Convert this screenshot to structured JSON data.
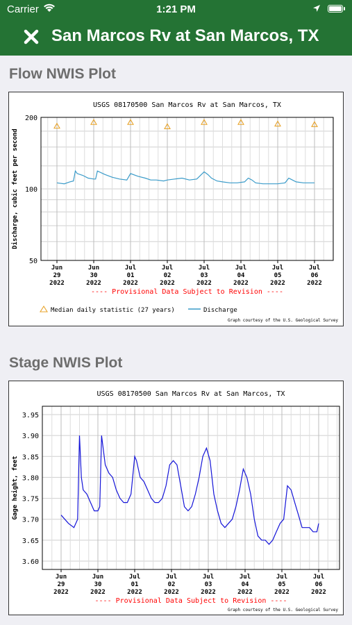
{
  "status_bar": {
    "carrier": "Carrier",
    "time": "1:21 PM"
  },
  "nav": {
    "title": "San Marcos Rv at San Marcos, TX"
  },
  "flow_section": {
    "title": "Flow NWIS Plot"
  },
  "stage_section": {
    "title": "Stage NWIS Plot"
  },
  "colors": {
    "header": "#247334",
    "discharge": "#3a9bc9",
    "stage": "#1414d8",
    "median": "#e8a32a",
    "provisional": "#ff0000"
  },
  "chart_data": [
    {
      "type": "line",
      "title": "USGS 08170500 San Marcos Rv at San Marcos, TX",
      "ylabel": "Discharge, cubic feet per second",
      "xlabel": "",
      "y_scale": "log",
      "ylim": [
        50,
        200
      ],
      "ytick_labels": [
        "200",
        "100",
        "50"
      ],
      "xtick_labels": [
        [
          "Jun",
          "29",
          "2022"
        ],
        [
          "Jun",
          "30",
          "2022"
        ],
        [
          "Jul",
          "01",
          "2022"
        ],
        [
          "Jul",
          "02",
          "2022"
        ],
        [
          "Jul",
          "03",
          "2022"
        ],
        [
          "Jul",
          "04",
          "2022"
        ],
        [
          "Jul",
          "05",
          "2022"
        ],
        [
          "Jul",
          "06",
          "2022"
        ]
      ],
      "provisional_note": "---- Provisional Data Subject to Revision ----",
      "legend": [
        "Median daily statistic (27 years)",
        "Discharge"
      ],
      "courtesy": "Graph courtesy of the U.S. Geological Survey",
      "series": [
        {
          "name": "Median daily statistic (27 years)",
          "x": [
            0,
            1,
            2,
            3,
            4,
            5,
            6,
            7
          ],
          "values": [
            190,
            197,
            197,
            189,
            197,
            197,
            194,
            193
          ]
        },
        {
          "name": "Discharge",
          "x": [
            0,
            0.2,
            0.35,
            0.45,
            0.5,
            0.55,
            0.7,
            0.85,
            1,
            1.05,
            1.1,
            1.3,
            1.5,
            1.7,
            1.9,
            2,
            2.2,
            2.4,
            2.55,
            2.7,
            2.9,
            3,
            3.2,
            3.4,
            3.6,
            3.8,
            4,
            4.1,
            4.2,
            4.35,
            4.5,
            4.7,
            4.9,
            5.1,
            5.2,
            5.3,
            5.4,
            5.6,
            5.8,
            6,
            6.2,
            6.3,
            6.35,
            6.5,
            6.7,
            6.9,
            7
          ],
          "values": [
            106,
            105,
            107,
            108,
            119,
            116,
            114,
            111,
            110,
            110,
            119,
            115,
            112,
            110,
            109,
            116,
            113,
            111,
            109,
            109,
            108,
            109,
            110,
            111,
            109,
            110,
            118,
            115,
            111,
            108,
            107,
            106,
            106,
            107,
            111,
            109,
            106,
            105,
            105,
            105,
            106,
            111,
            110,
            107,
            106,
            106,
            106
          ]
        }
      ]
    },
    {
      "type": "line",
      "title": "USGS 08170500 San Marcos Rv at San Marcos, TX",
      "ylabel": "Gage height, feet",
      "xlabel": "",
      "ylim": [
        3.58,
        3.97
      ],
      "ytick_labels": [
        "3.95",
        "3.90",
        "3.85",
        "3.80",
        "3.75",
        "3.70",
        "3.65",
        "3.60"
      ],
      "xtick_labels": [
        [
          "Jun",
          "29",
          "2022"
        ],
        [
          "Jun",
          "30",
          "2022"
        ],
        [
          "Jul",
          "01",
          "2022"
        ],
        [
          "Jul",
          "02",
          "2022"
        ],
        [
          "Jul",
          "03",
          "2022"
        ],
        [
          "Jul",
          "04",
          "2022"
        ],
        [
          "Jul",
          "05",
          "2022"
        ],
        [
          "Jul",
          "06",
          "2022"
        ]
      ],
      "provisional_note": "---- Provisional Data Subject to Revision ----",
      "courtesy": "Graph courtesy of the U.S. Geological Survey",
      "series": [
        {
          "name": "Gage height",
          "x": [
            0,
            0.1,
            0.2,
            0.35,
            0.45,
            0.5,
            0.55,
            0.6,
            0.7,
            0.8,
            0.9,
            1,
            1.05,
            1.1,
            1.2,
            1.3,
            1.4,
            1.5,
            1.6,
            1.7,
            1.8,
            1.9,
            2,
            2.05,
            2.15,
            2.25,
            2.35,
            2.45,
            2.55,
            2.65,
            2.75,
            2.85,
            2.95,
            3.05,
            3.15,
            3.25,
            3.35,
            3.45,
            3.55,
            3.65,
            3.75,
            3.85,
            3.95,
            4.05,
            4.15,
            4.25,
            4.35,
            4.45,
            4.55,
            4.65,
            4.75,
            4.85,
            4.95,
            5.05,
            5.15,
            5.25,
            5.35,
            5.45,
            5.55,
            5.65,
            5.75,
            5.85,
            5.95,
            6.05,
            6.15,
            6.25,
            6.35,
            6.45,
            6.55,
            6.65,
            6.75,
            6.85,
            6.95,
            7
          ],
          "values": [
            3.71,
            3.7,
            3.69,
            3.68,
            3.7,
            3.9,
            3.8,
            3.77,
            3.76,
            3.74,
            3.72,
            3.72,
            3.73,
            3.9,
            3.83,
            3.81,
            3.8,
            3.77,
            3.75,
            3.74,
            3.74,
            3.76,
            3.85,
            3.84,
            3.8,
            3.79,
            3.77,
            3.75,
            3.74,
            3.74,
            3.75,
            3.78,
            3.83,
            3.84,
            3.83,
            3.78,
            3.73,
            3.72,
            3.73,
            3.76,
            3.8,
            3.85,
            3.87,
            3.84,
            3.76,
            3.72,
            3.69,
            3.68,
            3.69,
            3.7,
            3.73,
            3.77,
            3.82,
            3.8,
            3.76,
            3.7,
            3.66,
            3.65,
            3.65,
            3.64,
            3.65,
            3.67,
            3.69,
            3.7,
            3.78,
            3.77,
            3.74,
            3.71,
            3.68,
            3.68,
            3.68,
            3.67,
            3.67,
            3.69
          ]
        }
      ]
    }
  ]
}
